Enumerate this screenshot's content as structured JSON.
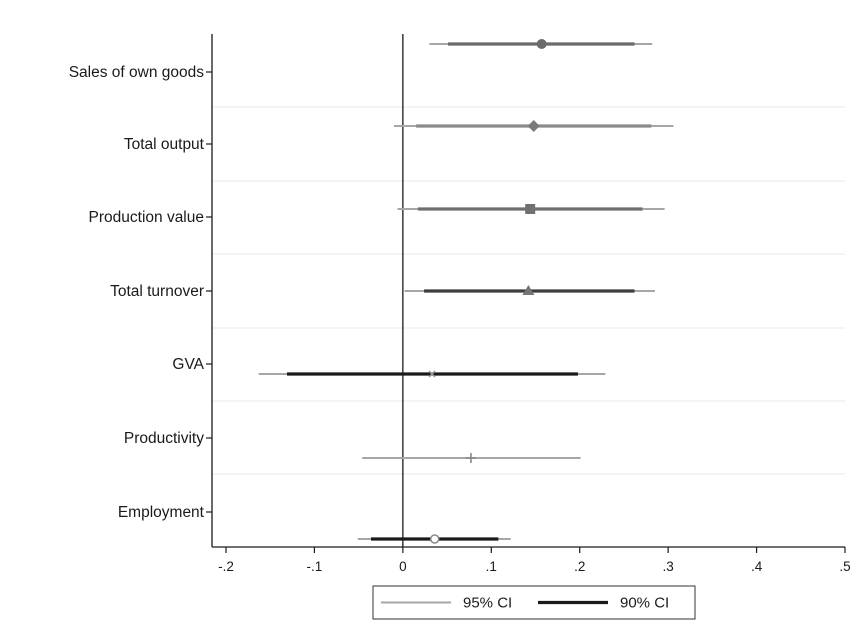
{
  "chart_data": {
    "type": "coefficient_plot",
    "orientation": "horizontal",
    "title": "",
    "xlabel": "",
    "ylabel": "",
    "xlim": [
      -0.2,
      0.5
    ],
    "x_ticks": [
      {
        "value": -0.2,
        "label": "-.2"
      },
      {
        "value": -0.1,
        "label": "-.1"
      },
      {
        "value": 0,
        "label": "0"
      },
      {
        "value": 0.1,
        "label": ".1"
      },
      {
        "value": 0.2,
        "label": ".2"
      },
      {
        "value": 0.3,
        "label": ".3"
      },
      {
        "value": 0.4,
        "label": ".4"
      },
      {
        "value": 0.5,
        "label": ".5"
      }
    ],
    "reference_line_x": 0,
    "grid": "horizontal",
    "legend": {
      "position": "bottom",
      "entries": [
        {
          "label": "95% CI",
          "color": "#a6a6a6"
        },
        {
          "label": "90% CI",
          "color": "#1a1a1a"
        }
      ]
    },
    "categories": [
      "Sales of own goods",
      "Total output",
      "Production value",
      "Total turnover",
      "GVA",
      "Productivity",
      "Employment"
    ],
    "series": [
      {
        "marker": "circle",
        "estimate": 0.157,
        "ci95": [
          0.03,
          0.282
        ],
        "ci90": [
          0.051,
          0.262
        ],
        "color": "#6b6b6b",
        "ci90_color": "#6b6b6b"
      },
      {
        "marker": "diamond",
        "estimate": 0.148,
        "ci95": [
          -0.01,
          0.306
        ],
        "ci90": [
          0.015,
          0.281
        ],
        "color": "#7a7a7a",
        "ci90_color": "#8a8a8a"
      },
      {
        "marker": "square",
        "estimate": 0.144,
        "ci95": [
          -0.006,
          0.296
        ],
        "ci90": [
          0.017,
          0.271
        ],
        "color": "#707070",
        "ci90_color": "#6f6f6f"
      },
      {
        "marker": "triangle",
        "estimate": 0.142,
        "ci95": [
          0.002,
          0.285
        ],
        "ci90": [
          0.024,
          0.262
        ],
        "color": "#757575",
        "ci90_color": "#3d3d3d"
      },
      {
        "marker": "cross-x",
        "estimate": 0.033,
        "ci95": [
          -0.163,
          0.229
        ],
        "ci90": [
          -0.131,
          0.198
        ],
        "color": "#9a9a9a",
        "ci90_color": "#1a1a1a"
      },
      {
        "marker": "plus",
        "estimate": 0.077,
        "ci95": [
          -0.046,
          0.201
        ],
        "ci90": [
          -0.046,
          0.201
        ],
        "color": "#9a9a9a",
        "ci90_color": "#a6a6a6"
      },
      {
        "marker": "hollow-circle",
        "estimate": 0.036,
        "ci95": [
          -0.051,
          0.122
        ],
        "ci90": [
          -0.036,
          0.108
        ],
        "color": "#8a8a8a",
        "ci90_color": "#1a1a1a"
      }
    ]
  }
}
